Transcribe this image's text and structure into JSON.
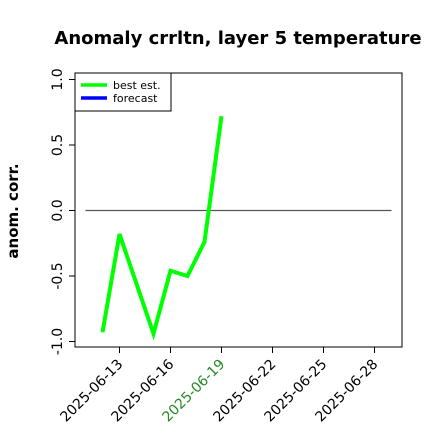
{
  "chart_data": {
    "type": "line",
    "title": "Anomaly crrltn, layer 5 temperature",
    "xlabel": "",
    "ylabel": "anom. corr.",
    "ylim": [
      -1.0,
      1.0
    ],
    "y_ticks": [
      "-1.0",
      "-0.5",
      "0.0",
      "0.5",
      "1.0"
    ],
    "x_ticks": [
      "2025-06-13",
      "2025-06-16",
      "2025-06-19",
      "2025-06-22",
      "2025-06-25",
      "2025-06-28"
    ],
    "highlighted_x_tick": "2025-06-19",
    "highlight_color": "#228b22",
    "reference_line": {
      "y": 0.0,
      "x_from": "2025-06-11",
      "x_to": "2025-06-29",
      "color": "#555555"
    },
    "legend": {
      "position": "top-left"
    },
    "series": [
      {
        "name": "best est.",
        "color": "#00ff00",
        "x": [
          "2025-06-12",
          "2025-06-13",
          "2025-06-15",
          "2025-06-16",
          "2025-06-17",
          "2025-06-18",
          "2025-06-19"
        ],
        "values": [
          -0.93,
          -0.18,
          -0.94,
          -0.46,
          -0.5,
          -0.24,
          0.72
        ]
      },
      {
        "name": "forecast",
        "color": "#0000ff",
        "x": [],
        "values": []
      }
    ]
  }
}
